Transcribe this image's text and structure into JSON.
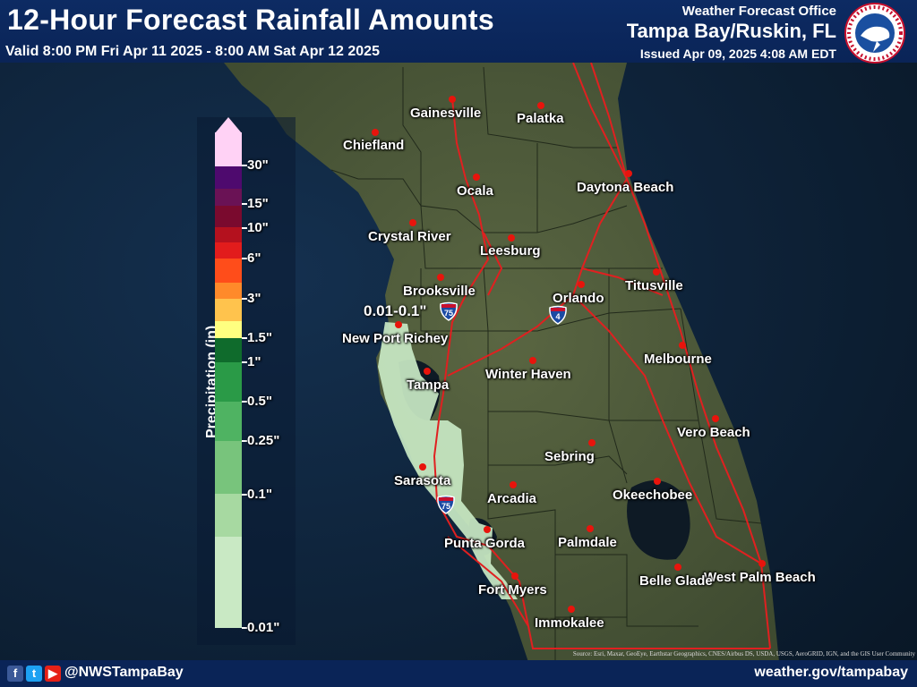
{
  "header": {
    "title": "12-Hour Forecast Rainfall Amounts",
    "valid": "Valid 8:00 PM Fri Apr 11 2025 - 8:00 AM Sat Apr 12 2025",
    "office_line1": "Weather Forecast Office",
    "office_line2": "Tampa Bay/Ruskin, FL",
    "issued": "Issued Apr 09, 2025 4:08 AM EDT",
    "logo_text": "NATIONAL WEATHER SERVICE"
  },
  "legend": {
    "title": "Precipitation (in)",
    "ticks": [
      "30\"",
      "15\"",
      "10\"",
      "6\"",
      "3\"",
      "1.5\"",
      "1\"",
      "0.5\"",
      "0.25\"",
      "0.1\"",
      "0.01\""
    ],
    "colors": [
      "#ffd2f5",
      "#4e0a6e",
      "#6a1255",
      "#7a0a2e",
      "#b4111e",
      "#e21c1c",
      "#ff4d1a",
      "#ff8a2a",
      "#ffc34d",
      "#ffff80",
      "#0f6b2c",
      "#2a9a47",
      "#4fb362",
      "#78c47c",
      "#a7d9a1",
      "#c9e9c4"
    ]
  },
  "map_label": "0.01-0.1\"",
  "cities": [
    "Gainesville",
    "Palatka",
    "Chiefland",
    "Ocala",
    "Daytona Beach",
    "Crystal River",
    "Leesburg",
    "Brooksville",
    "Titusville",
    "Orlando",
    "New Port Richey",
    "Melbourne",
    "Winter Haven",
    "Tampa",
    "Vero Beach",
    "Sebring",
    "Sarasota",
    "Arcadia",
    "Okeechobee",
    "Punta Gorda",
    "Palmdale",
    "West Palm Beach",
    "Belle Glade",
    "Fort Myers",
    "Immokalee"
  ],
  "shields": [
    "75",
    "4",
    "75"
  ],
  "footer": {
    "handle": "@NWSTampaBay",
    "website": "weather.gov/tampabay",
    "attribution": "Source: Esri, Maxar, GeoEye, Earthstar Geographics, CNES/Airbus DS, USDA, USGS, AeroGRID, IGN, and the GIS User Community"
  },
  "colors": {
    "header_bg": "#0d2b63",
    "water": "#0c1d33",
    "land": "#4d5a3a",
    "rain_light": "#c9e9c4",
    "city_dot": "#e8140c",
    "roads": "#e02020"
  }
}
